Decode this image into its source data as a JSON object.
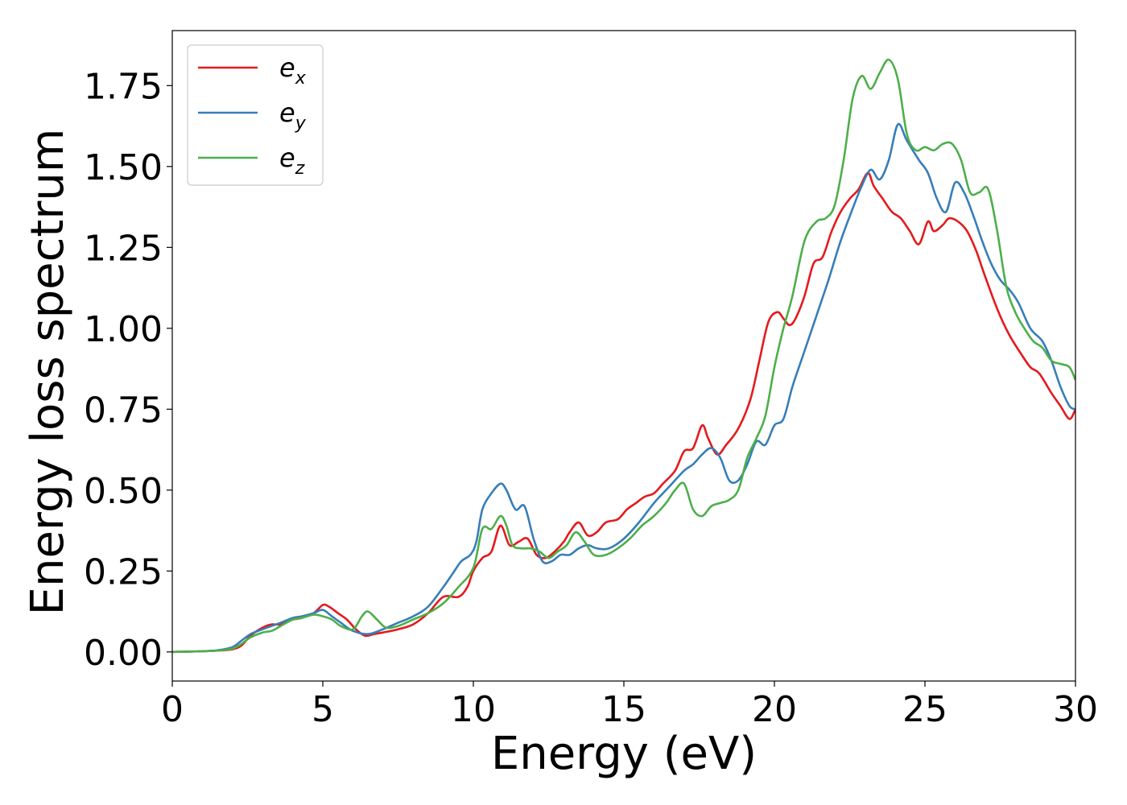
{
  "chart_data": {
    "type": "line",
    "xlabel": "Energy (eV)",
    "ylabel": "Energy loss spectrum",
    "xlim": [
      0,
      30
    ],
    "ylim": [
      -0.09,
      1.92
    ],
    "xticks": [
      0,
      5,
      10,
      15,
      20,
      25,
      30
    ],
    "xtick_labels": [
      "0",
      "5",
      "10",
      "15",
      "20",
      "25",
      "30"
    ],
    "yticks": [
      0.0,
      0.25,
      0.5,
      0.75,
      1.0,
      1.25,
      1.5,
      1.75
    ],
    "ytick_labels": [
      "0.00",
      "0.25",
      "0.50",
      "0.75",
      "1.00",
      "1.25",
      "1.50",
      "1.75"
    ],
    "grid": false,
    "legend_position": "top-left",
    "series": [
      {
        "name": "e_x",
        "legend_main": "e",
        "legend_sub": "x",
        "color": "#e41a1c",
        "x": [
          0,
          1,
          1.5,
          2,
          2.3,
          2.6,
          3,
          3.3,
          3.6,
          4,
          4.3,
          4.7,
          5,
          5.2,
          5.5,
          5.8,
          6.1,
          6.4,
          6.7,
          7,
          7.5,
          8,
          8.5,
          9,
          9.5,
          9.8,
          10,
          10.3,
          10.6,
          10.9,
          11.2,
          11.5,
          11.8,
          12.1,
          12.4,
          12.7,
          13,
          13.2,
          13.5,
          13.8,
          14.1,
          14.4,
          14.8,
          15.1,
          15.4,
          15.7,
          16,
          16.3,
          16.7,
          17,
          17.3,
          17.6,
          17.8,
          18.1,
          18.4,
          18.8,
          19.2,
          19.5,
          19.8,
          20.1,
          20.3,
          20.5,
          20.7,
          21,
          21.3,
          21.6,
          21.9,
          22.2,
          22.5,
          22.8,
          23.1,
          23.3,
          23.6,
          23.9,
          24.2,
          24.5,
          24.8,
          25.1,
          25.3,
          25.6,
          25.8,
          26.1,
          26.4,
          26.7,
          27,
          27.4,
          27.8,
          28.2,
          28.5,
          28.8,
          29.2,
          29.5,
          29.8,
          30
        ],
        "y": [
          0.0,
          0.002,
          0.004,
          0.008,
          0.02,
          0.05,
          0.075,
          0.085,
          0.085,
          0.1,
          0.105,
          0.12,
          0.145,
          0.14,
          0.12,
          0.1,
          0.07,
          0.05,
          0.055,
          0.06,
          0.07,
          0.085,
          0.12,
          0.17,
          0.17,
          0.2,
          0.25,
          0.29,
          0.31,
          0.39,
          0.33,
          0.34,
          0.35,
          0.3,
          0.29,
          0.31,
          0.34,
          0.37,
          0.4,
          0.36,
          0.37,
          0.4,
          0.41,
          0.44,
          0.46,
          0.48,
          0.49,
          0.52,
          0.56,
          0.62,
          0.63,
          0.7,
          0.66,
          0.61,
          0.64,
          0.69,
          0.78,
          0.9,
          1.02,
          1.05,
          1.03,
          1.01,
          1.03,
          1.1,
          1.2,
          1.22,
          1.3,
          1.36,
          1.4,
          1.43,
          1.48,
          1.44,
          1.4,
          1.36,
          1.34,
          1.3,
          1.26,
          1.33,
          1.3,
          1.32,
          1.34,
          1.33,
          1.3,
          1.24,
          1.16,
          1.06,
          0.98,
          0.92,
          0.88,
          0.86,
          0.8,
          0.76,
          0.72,
          0.75
        ]
      },
      {
        "name": "e_y",
        "legend_main": "e",
        "legend_sub": "y",
        "color": "#377eb8",
        "x": [
          0,
          1,
          1.5,
          2,
          2.3,
          2.6,
          3,
          3.3,
          3.6,
          4,
          4.3,
          4.7,
          5,
          5.3,
          5.6,
          6,
          6.5,
          7,
          7.5,
          8,
          8.5,
          9,
          9.3,
          9.6,
          9.9,
          10.1,
          10.3,
          10.6,
          10.9,
          11.1,
          11.4,
          11.7,
          12,
          12.3,
          12.6,
          12.9,
          13.2,
          13.5,
          13.8,
          14.1,
          14.5,
          15,
          15.5,
          16,
          16.5,
          17,
          17.3,
          17.6,
          17.9,
          18.2,
          18.5,
          18.8,
          19.1,
          19.4,
          19.7,
          20,
          20.3,
          20.6,
          21,
          21.4,
          21.8,
          22.2,
          22.6,
          22.9,
          23.2,
          23.5,
          23.8,
          24.1,
          24.4,
          24.8,
          25.1,
          25.4,
          25.7,
          26,
          26.3,
          26.6,
          26.9,
          27.2,
          27.5,
          27.8,
          28.1,
          28.5,
          28.9,
          29.2,
          29.5,
          29.8,
          30
        ],
        "y": [
          0.0,
          0.002,
          0.005,
          0.015,
          0.035,
          0.055,
          0.07,
          0.08,
          0.09,
          0.105,
          0.11,
          0.12,
          0.13,
          0.11,
          0.09,
          0.065,
          0.055,
          0.07,
          0.09,
          0.11,
          0.14,
          0.2,
          0.24,
          0.28,
          0.3,
          0.34,
          0.44,
          0.49,
          0.52,
          0.5,
          0.44,
          0.45,
          0.35,
          0.28,
          0.28,
          0.3,
          0.3,
          0.32,
          0.33,
          0.32,
          0.32,
          0.35,
          0.4,
          0.46,
          0.51,
          0.56,
          0.58,
          0.61,
          0.63,
          0.6,
          0.53,
          0.53,
          0.58,
          0.65,
          0.64,
          0.7,
          0.72,
          0.82,
          0.93,
          1.04,
          1.15,
          1.27,
          1.37,
          1.44,
          1.49,
          1.46,
          1.52,
          1.63,
          1.58,
          1.52,
          1.48,
          1.4,
          1.36,
          1.45,
          1.42,
          1.35,
          1.27,
          1.2,
          1.15,
          1.12,
          1.08,
          1.0,
          0.96,
          0.9,
          0.82,
          0.76,
          0.75
        ]
      },
      {
        "name": "e_z",
        "legend_main": "e",
        "legend_sub": "z",
        "color": "#4daf4a",
        "x": [
          0,
          1,
          1.5,
          2,
          2.3,
          2.6,
          3,
          3.3,
          3.6,
          4,
          4.3,
          4.7,
          5,
          5.3,
          5.6,
          6,
          6.3,
          6.5,
          6.8,
          7.1,
          7.5,
          8,
          8.5,
          9,
          9.5,
          10,
          10.3,
          10.6,
          10.9,
          11.1,
          11.3,
          11.6,
          11.9,
          12.2,
          12.5,
          12.8,
          13.1,
          13.4,
          13.7,
          14,
          14.4,
          14.8,
          15.2,
          15.6,
          16,
          16.4,
          16.7,
          17,
          17.3,
          17.6,
          17.9,
          18.2,
          18.5,
          18.8,
          19.1,
          19.4,
          19.7,
          20,
          20.3,
          20.6,
          21,
          21.4,
          21.7,
          22,
          22.3,
          22.6,
          22.9,
          23.2,
          23.5,
          23.8,
          24.1,
          24.4,
          24.7,
          25,
          25.3,
          25.6,
          25.9,
          26.2,
          26.5,
          26.8,
          27.1,
          27.4,
          27.7,
          28,
          28.3,
          28.6,
          28.9,
          29.2,
          29.5,
          29.8,
          30
        ],
        "y": [
          0.0,
          0.002,
          0.004,
          0.01,
          0.025,
          0.045,
          0.06,
          0.065,
          0.08,
          0.1,
          0.105,
          0.115,
          0.11,
          0.1,
          0.08,
          0.07,
          0.11,
          0.125,
          0.1,
          0.075,
          0.08,
          0.1,
          0.12,
          0.15,
          0.2,
          0.26,
          0.38,
          0.38,
          0.42,
          0.39,
          0.33,
          0.32,
          0.32,
          0.31,
          0.29,
          0.31,
          0.33,
          0.37,
          0.34,
          0.3,
          0.3,
          0.32,
          0.35,
          0.39,
          0.42,
          0.46,
          0.5,
          0.52,
          0.44,
          0.42,
          0.45,
          0.46,
          0.47,
          0.5,
          0.6,
          0.66,
          0.73,
          0.88,
          1.0,
          1.1,
          1.27,
          1.33,
          1.34,
          1.38,
          1.52,
          1.71,
          1.78,
          1.74,
          1.79,
          1.83,
          1.77,
          1.6,
          1.55,
          1.56,
          1.55,
          1.57,
          1.57,
          1.52,
          1.42,
          1.42,
          1.43,
          1.3,
          1.13,
          1.05,
          1.0,
          0.96,
          0.94,
          0.9,
          0.89,
          0.88,
          0.84
        ]
      }
    ]
  }
}
